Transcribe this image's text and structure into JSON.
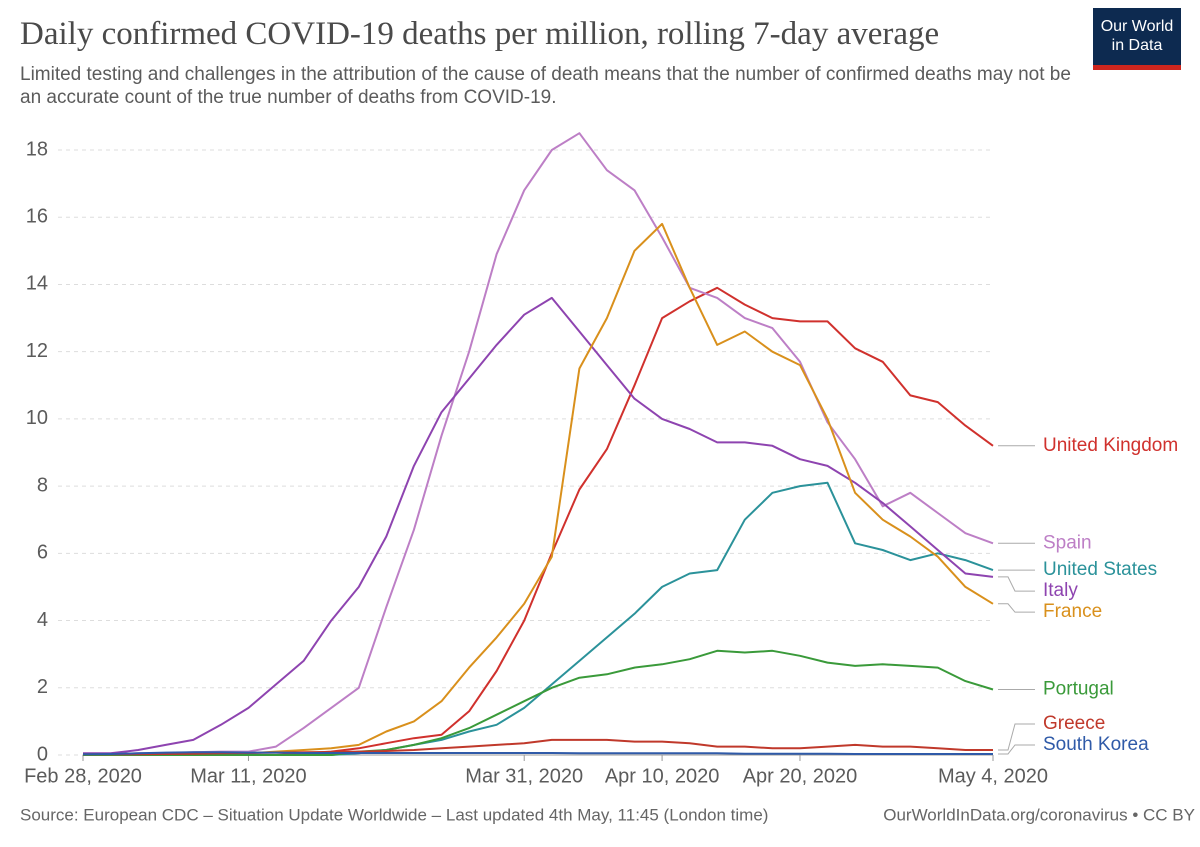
{
  "chart_data": {
    "type": "line",
    "title": "Daily confirmed COVID-19 deaths per million, rolling 7-day average",
    "subtitle": "Limited testing and challenges in the attribution of the cause of death means that the number of confirmed deaths may not be an accurate count of the true number of deaths from COVID-19.",
    "source": "Source: European CDC – Situation Update Worldwide – Last updated 4th May, 11:45 (London time)",
    "credit": "OurWorldInData.org/coronavirus • CC BY",
    "logo": [
      "Our World",
      "in Data"
    ],
    "x": [
      "2020-02-28",
      "2020-03-01",
      "2020-03-03",
      "2020-03-05",
      "2020-03-07",
      "2020-03-09",
      "2020-03-11",
      "2020-03-13",
      "2020-03-15",
      "2020-03-17",
      "2020-03-19",
      "2020-03-21",
      "2020-03-23",
      "2020-03-25",
      "2020-03-27",
      "2020-03-29",
      "2020-03-31",
      "2020-04-02",
      "2020-04-04",
      "2020-04-06",
      "2020-04-08",
      "2020-04-10",
      "2020-04-12",
      "2020-04-14",
      "2020-04-16",
      "2020-04-18",
      "2020-04-20",
      "2020-04-22",
      "2020-04-24",
      "2020-04-26",
      "2020-04-28",
      "2020-04-30",
      "2020-05-02",
      "2020-05-04"
    ],
    "xlim": [
      "2020-02-28",
      "2020-05-04"
    ],
    "xticks": [
      {
        "value": "2020-02-28",
        "label": "Feb 28, 2020"
      },
      {
        "value": "2020-03-11",
        "label": "Mar 11, 2020"
      },
      {
        "value": "2020-03-31",
        "label": "Mar 31, 2020"
      },
      {
        "value": "2020-04-10",
        "label": "Apr 10, 2020"
      },
      {
        "value": "2020-04-20",
        "label": "Apr 20, 2020"
      },
      {
        "value": "2020-05-04",
        "label": "May 4, 2020"
      }
    ],
    "ylim": [
      0,
      18
    ],
    "yticks": [
      0,
      2,
      4,
      6,
      8,
      10,
      12,
      14,
      16,
      18
    ],
    "grid": true,
    "series": [
      {
        "name": "United Kingdom",
        "color": "#d0312d",
        "values": [
          0,
          0,
          0,
          0,
          0,
          0,
          0,
          0,
          0.05,
          0.1,
          0.2,
          0.35,
          0.5,
          0.6,
          1.3,
          2.5,
          4.0,
          6.0,
          7.9,
          9.1,
          11.0,
          13.0,
          13.5,
          13.9,
          13.4,
          13.0,
          12.9,
          12.9,
          12.1,
          11.7,
          10.7,
          10.5,
          9.8,
          9.2
        ]
      },
      {
        "name": "Spain",
        "color": "#bd7fc6",
        "values": [
          0,
          0.02,
          0.05,
          0.05,
          0.08,
          0.1,
          0.1,
          0.25,
          0.8,
          1.4,
          2.0,
          4.4,
          6.7,
          9.5,
          12.0,
          14.9,
          16.8,
          18.0,
          18.5,
          17.4,
          16.8,
          15.4,
          13.9,
          13.6,
          13.0,
          12.7,
          11.7,
          9.9,
          8.8,
          7.4,
          7.8,
          7.2,
          6.6,
          6.3
        ]
      },
      {
        "name": "United States",
        "color": "#2b929a",
        "values": [
          0,
          0,
          0,
          0,
          0,
          0,
          0,
          0,
          0,
          0,
          0.05,
          0.15,
          0.3,
          0.45,
          0.7,
          0.9,
          1.4,
          2.1,
          2.8,
          3.5,
          4.2,
          5.0,
          5.4,
          5.5,
          7.0,
          7.8,
          8.0,
          8.1,
          6.3,
          6.1,
          5.8,
          6.0,
          5.8,
          5.5
        ]
      },
      {
        "name": "Italy",
        "color": "#8e44b0",
        "values": [
          0.05,
          0.05,
          0.15,
          0.3,
          0.45,
          0.9,
          1.4,
          2.1,
          2.8,
          4.0,
          5.0,
          6.5,
          8.6,
          10.2,
          11.2,
          12.2,
          13.1,
          13.6,
          12.6,
          11.6,
          10.6,
          10.0,
          9.7,
          9.3,
          9.3,
          9.2,
          8.8,
          8.6,
          8.1,
          7.5,
          6.8,
          6.1,
          5.4,
          5.3
        ]
      },
      {
        "name": "France",
        "color": "#d9901c",
        "values": [
          0,
          0,
          0,
          0,
          0,
          0,
          0.05,
          0.1,
          0.15,
          0.2,
          0.3,
          0.7,
          1.0,
          1.6,
          2.6,
          3.5,
          4.5,
          5.9,
          11.5,
          13.0,
          15.0,
          15.8,
          13.9,
          12.2,
          12.6,
          12.0,
          11.6,
          10.0,
          7.8,
          7.0,
          6.5,
          5.9,
          5.0,
          4.5
        ]
      },
      {
        "name": "Portugal",
        "color": "#3a9a3a",
        "values": [
          0,
          0,
          0,
          0,
          0,
          0,
          0,
          0,
          0,
          0,
          0.1,
          0.15,
          0.3,
          0.5,
          0.8,
          1.2,
          1.6,
          2.0,
          2.3,
          2.4,
          2.6,
          2.7,
          2.85,
          3.1,
          3.05,
          3.1,
          2.95,
          2.75,
          2.65,
          2.7,
          2.65,
          2.6,
          2.2,
          1.95
        ]
      },
      {
        "name": "Greece",
        "color": "#c0392b",
        "values": [
          0.02,
          0.02,
          0.02,
          0.03,
          0.04,
          0.05,
          0.06,
          0.07,
          0.08,
          0.09,
          0.1,
          0.12,
          0.15,
          0.2,
          0.25,
          0.3,
          0.35,
          0.45,
          0.45,
          0.45,
          0.4,
          0.4,
          0.35,
          0.25,
          0.25,
          0.2,
          0.2,
          0.25,
          0.3,
          0.25,
          0.25,
          0.2,
          0.15,
          0.15
        ]
      },
      {
        "name": "South Korea",
        "color": "#2f5aa8",
        "values": [
          0.02,
          0.03,
          0.05,
          0.07,
          0.08,
          0.08,
          0.07,
          0.07,
          0.06,
          0.06,
          0.06,
          0.06,
          0.06,
          0.06,
          0.06,
          0.06,
          0.06,
          0.06,
          0.05,
          0.05,
          0.05,
          0.05,
          0.05,
          0.05,
          0.04,
          0.04,
          0.04,
          0.04,
          0.03,
          0.03,
          0.03,
          0.03,
          0.03,
          0.03
        ]
      }
    ]
  }
}
